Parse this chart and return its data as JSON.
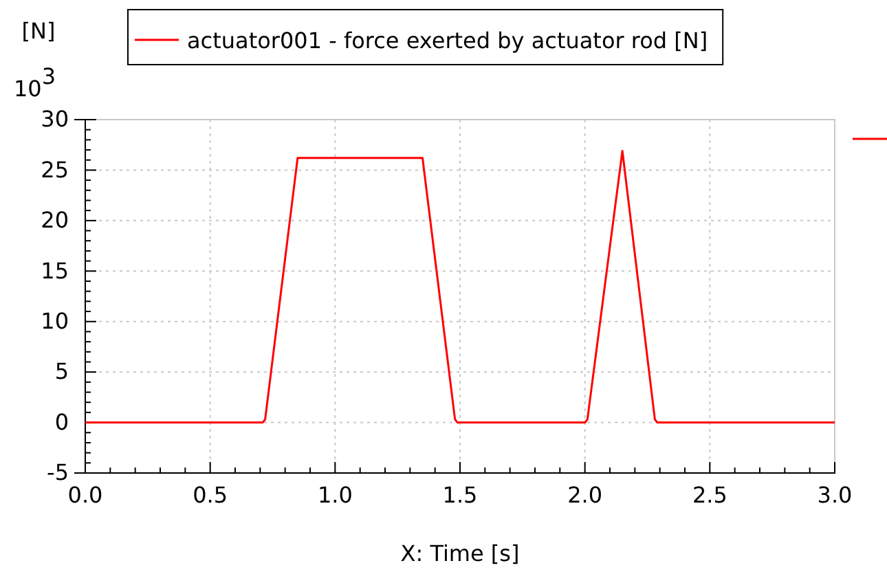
{
  "chart_data": {
    "type": "line",
    "ylabel": "[N]",
    "xlabel": "X: Time [s]",
    "annotations": [
      "10$^{3}$"
    ],
    "x": [
      0,
      0.71,
      0.72,
      0.85,
      1.35,
      1.48,
      1.49,
      2.0,
      2.01,
      2.15,
      2.28,
      2.29,
      3.0
    ],
    "series": [
      {
        "name": "actuator001 - force exerted by actuator rod [N]",
        "color": "#ff0000",
        "values": [
          0,
          0,
          0.3,
          26.2,
          26.2,
          0.3,
          0,
          0,
          0.3,
          26.9,
          0.3,
          0,
          0
        ]
      }
    ],
    "xlim": [
      0,
      3
    ],
    "ylim": [
      -5,
      30
    ],
    "xticks": [
      {
        "value": 0,
        "label": "0.0"
      },
      {
        "value": 0.5,
        "label": "0.5"
      },
      {
        "value": 1,
        "label": "1.0"
      },
      {
        "value": 1.5,
        "label": "1.5"
      },
      {
        "value": 2,
        "label": "2.0"
      },
      {
        "value": 2.5,
        "label": "2.5"
      },
      {
        "value": 3,
        "label": "3.0"
      }
    ],
    "yticks": [
      -5,
      0,
      5,
      10,
      15,
      20,
      25,
      30
    ],
    "grid": true,
    "legend": "top",
    "line_style": "solid",
    "marker": "none"
  }
}
